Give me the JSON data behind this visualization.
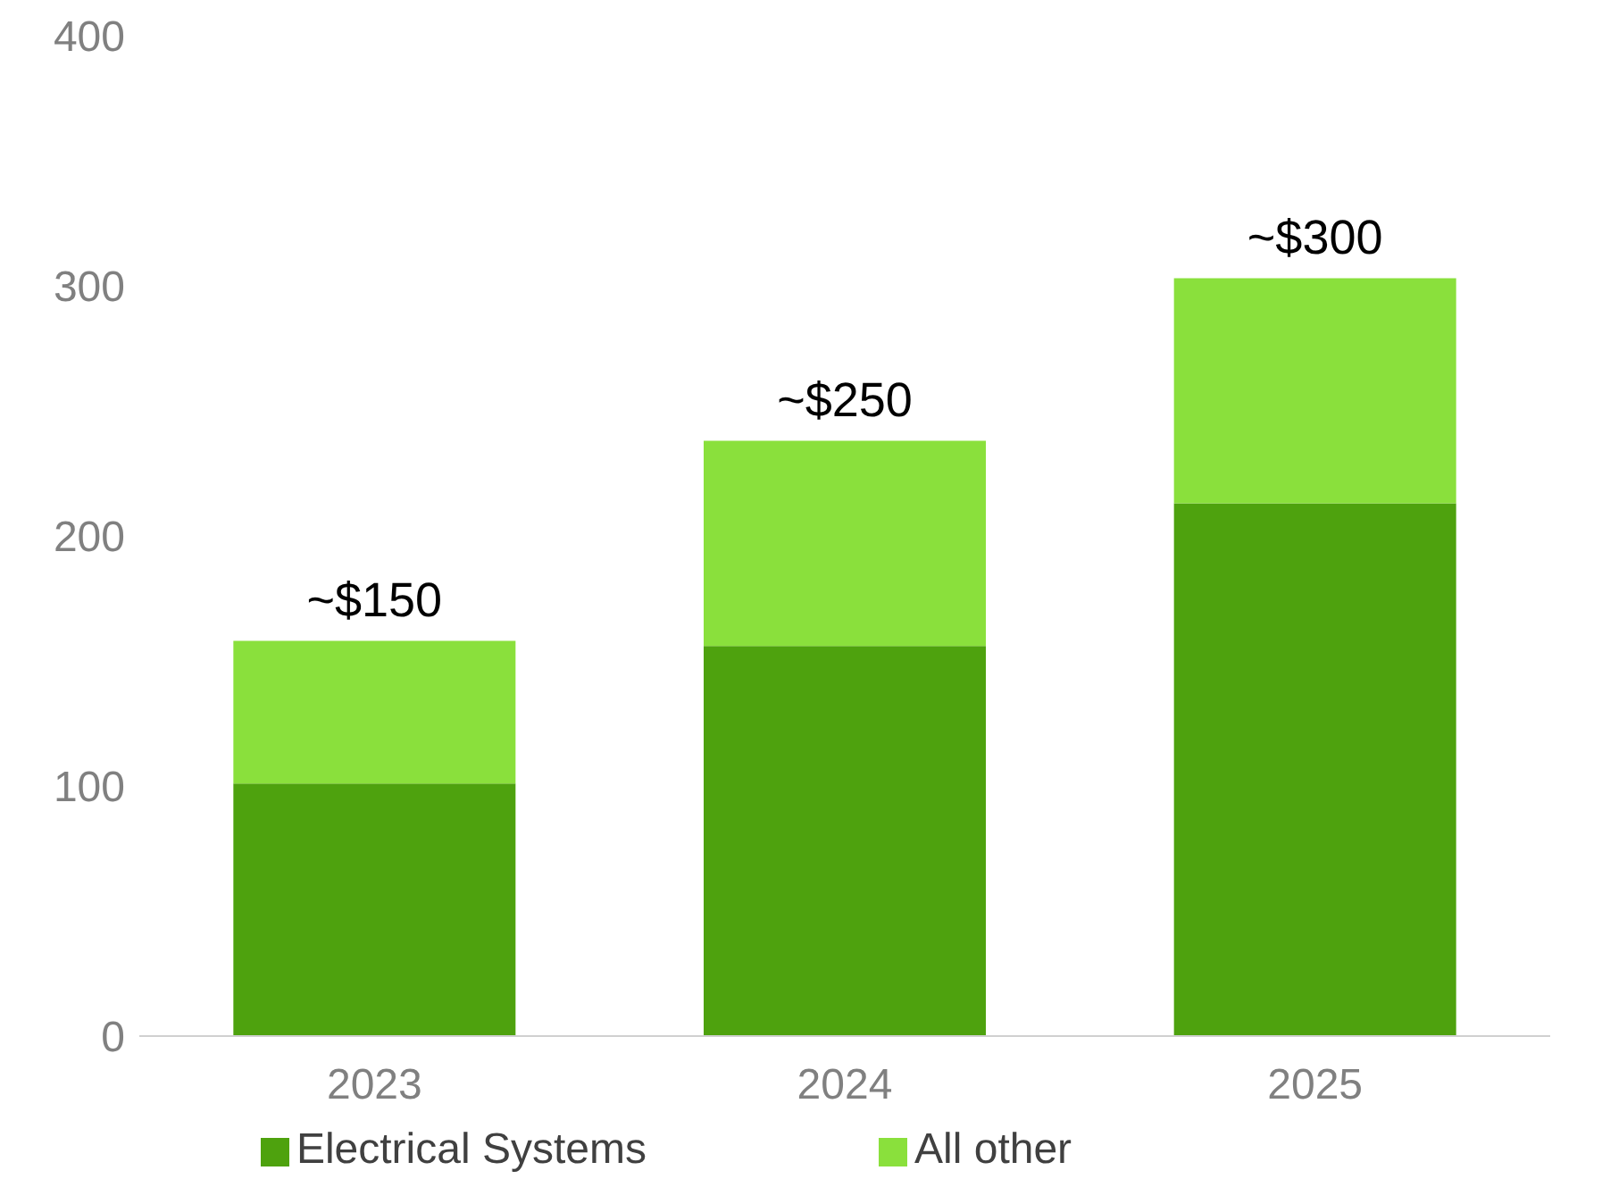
{
  "chart_data": {
    "type": "bar",
    "stacked": true,
    "categories": [
      "2023",
      "2024",
      "2025"
    ],
    "series": [
      {
        "name": "Electrical Systems",
        "color": "#4ea20e",
        "values": [
          101,
          156,
          213
        ]
      },
      {
        "name": "All other",
        "color": "#8ae03c",
        "values": [
          57,
          82,
          90
        ]
      }
    ],
    "annotations": [
      {
        "text": "~$150",
        "x": "2023",
        "y": 158
      },
      {
        "text": "~$250",
        "x": "2024",
        "y": 238
      },
      {
        "text": "~$300",
        "x": "2025",
        "y": 303
      }
    ],
    "ylim": [
      0,
      400
    ],
    "yticks": [
      0,
      100,
      200,
      300,
      400
    ],
    "grid": false,
    "legend": "bottom"
  }
}
